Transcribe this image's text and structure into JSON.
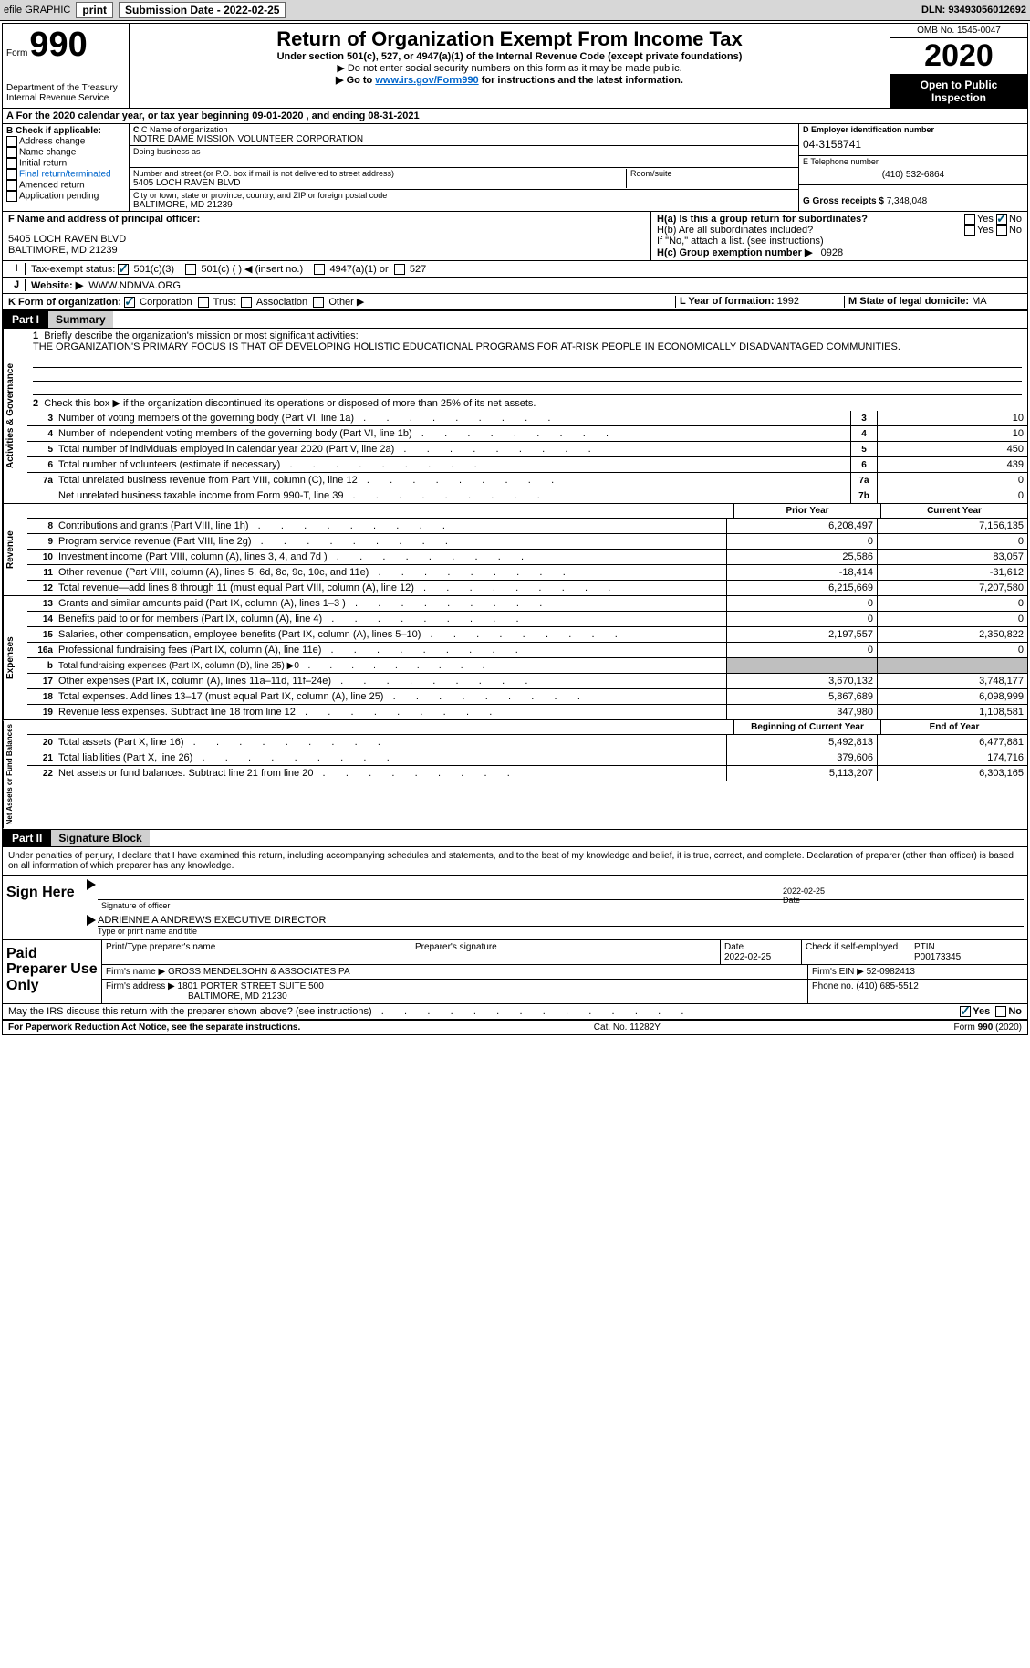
{
  "topbar": {
    "efile": "efile GRAPHIC",
    "print": "print",
    "subdate_label": "Submission Date - ",
    "subdate": "2022-02-25",
    "dln_label": "DLN: ",
    "dln": "93493056012692"
  },
  "header": {
    "form_word": "Form",
    "form_num": "990",
    "dept": "Department of the Treasury\nInternal Revenue Service",
    "title": "Return of Organization Exempt From Income Tax",
    "line1": "Under section 501(c), 527, or 4947(a)(1) of the Internal Revenue Code (except private foundations)",
    "line2": "▶ Do not enter social security numbers on this form as it may be made public.",
    "line3a": "▶ Go to ",
    "line3b": "www.irs.gov/Form990",
    "line3c": " for instructions and the latest information.",
    "omb": "OMB No. 1545-0047",
    "year": "2020",
    "open": "Open to Public Inspection"
  },
  "period": {
    "label": "A For the 2020 calendar year, or tax year beginning ",
    "start": "09-01-2020",
    "mid": "   , and ending ",
    "end": "08-31-2021"
  },
  "boxB": {
    "label": "B Check if applicable:",
    "items": [
      "Address change",
      "Name change",
      "Initial return",
      "Final return/terminated",
      "Amended return",
      "Application pending"
    ]
  },
  "boxC": {
    "name_lbl": "C Name of organization",
    "name": "NOTRE DAME MISSION VOLUNTEER CORPORATION",
    "dba_lbl": "Doing business as",
    "addr_lbl": "Number and street (or P.O. box if mail is not delivered to street address)",
    "room_lbl": "Room/suite",
    "addr": "5405 LOCH RAVEN BLVD",
    "city_lbl": "City or town, state or province, country, and ZIP or foreign postal code",
    "city": "BALTIMORE, MD  21239"
  },
  "boxD": {
    "ein_lbl": "D Employer identification number",
    "ein": "04-3158741",
    "tel_lbl": "E Telephone number",
    "tel": "(410) 532-6864",
    "gross_lbl": "G Gross receipts $ ",
    "gross": "7,348,048"
  },
  "boxF": {
    "lbl": "F Name and address of principal officer:",
    "addr1": "5405 LOCH RAVEN BLVD",
    "addr2": "BALTIMORE, MD  21239"
  },
  "boxH": {
    "a_lbl": "H(a)  Is this a group return for subordinates?",
    "b_lbl": "H(b)  Are all subordinates included?",
    "b_note": "If \"No,\" attach a list. (see instructions)",
    "c_lbl": "H(c)  Group exemption number ▶",
    "c_val": "0928",
    "yes": "Yes",
    "no": "No"
  },
  "boxI": {
    "lbl": "Tax-exempt status:",
    "o1": "501(c)(3)",
    "o2": "501(c) (  ) ◀ (insert no.)",
    "o3": "4947(a)(1) or",
    "o4": "527"
  },
  "boxJ": {
    "lbl": "Website: ▶",
    "val": "WWW.NDMVA.ORG"
  },
  "boxK": {
    "lbl": "K Form of organization:",
    "o1": "Corporation",
    "o2": "Trust",
    "o3": "Association",
    "o4": "Other ▶"
  },
  "boxL": {
    "l_lbl": "L Year of formation: ",
    "l_val": "1992",
    "m_lbl": "M State of legal domicile: ",
    "m_val": "MA"
  },
  "part1": {
    "hdr": "Part I",
    "title": "Summary",
    "l1_lbl": "Briefly describe the organization's mission or most significant activities:",
    "l1_val": "THE ORGANIZATION'S PRIMARY FOCUS IS THAT OF DEVELOPING HOLISTIC EDUCATIONAL PROGRAMS FOR AT-RISK PEOPLE IN ECONOMICALLY DISADVANTAGED COMMUNITIES.",
    "l2": "Check this box ▶        if the organization discontinued its operations or disposed of more than 25% of its net assets.",
    "rows_gov": [
      {
        "n": "3",
        "d": "Number of voting members of the governing body (Part VI, line 1a)",
        "b": "3",
        "v": "10"
      },
      {
        "n": "4",
        "d": "Number of independent voting members of the governing body (Part VI, line 1b)",
        "b": "4",
        "v": "10"
      },
      {
        "n": "5",
        "d": "Total number of individuals employed in calendar year 2020 (Part V, line 2a)",
        "b": "5",
        "v": "450"
      },
      {
        "n": "6",
        "d": "Total number of volunteers (estimate if necessary)",
        "b": "6",
        "v": "439"
      },
      {
        "n": "7a",
        "d": "Total unrelated business revenue from Part VIII, column (C), line 12",
        "b": "7a",
        "v": "0"
      },
      {
        "n": "",
        "d": "Net unrelated business taxable income from Form 990-T, line 39",
        "b": "7b",
        "v": "0"
      }
    ],
    "prior_hdr": "Prior Year",
    "curr_hdr": "Current Year",
    "rows_rev": [
      {
        "n": "8",
        "d": "Contributions and grants (Part VIII, line 1h)",
        "p": "6,208,497",
        "c": "7,156,135"
      },
      {
        "n": "9",
        "d": "Program service revenue (Part VIII, line 2g)",
        "p": "0",
        "c": "0"
      },
      {
        "n": "10",
        "d": "Investment income (Part VIII, column (A), lines 3, 4, and 7d )",
        "p": "25,586",
        "c": "83,057"
      },
      {
        "n": "11",
        "d": "Other revenue (Part VIII, column (A), lines 5, 6d, 8c, 9c, 10c, and 11e)",
        "p": "-18,414",
        "c": "-31,612"
      },
      {
        "n": "12",
        "d": "Total revenue—add lines 8 through 11 (must equal Part VIII, column (A), line 12)",
        "p": "6,215,669",
        "c": "7,207,580"
      }
    ],
    "rows_exp": [
      {
        "n": "13",
        "d": "Grants and similar amounts paid (Part IX, column (A), lines 1–3 )",
        "p": "0",
        "c": "0"
      },
      {
        "n": "14",
        "d": "Benefits paid to or for members (Part IX, column (A), line 4)",
        "p": "0",
        "c": "0"
      },
      {
        "n": "15",
        "d": "Salaries, other compensation, employee benefits (Part IX, column (A), lines 5–10)",
        "p": "2,197,557",
        "c": "2,350,822"
      },
      {
        "n": "16a",
        "d": "Professional fundraising fees (Part IX, column (A), line 11e)",
        "p": "0",
        "c": "0"
      },
      {
        "n": "b",
        "d": "Total fundraising expenses (Part IX, column (D), line 25) ▶0",
        "p": "",
        "c": "",
        "grey": true
      },
      {
        "n": "17",
        "d": "Other expenses (Part IX, column (A), lines 11a–11d, 11f–24e)",
        "p": "3,670,132",
        "c": "3,748,177"
      },
      {
        "n": "18",
        "d": "Total expenses. Add lines 13–17 (must equal Part IX, column (A), line 25)",
        "p": "5,867,689",
        "c": "6,098,999"
      },
      {
        "n": "19",
        "d": "Revenue less expenses. Subtract line 18 from line 12",
        "p": "347,980",
        "c": "1,108,581"
      }
    ],
    "beg_hdr": "Beginning of Current Year",
    "end_hdr": "End of Year",
    "rows_net": [
      {
        "n": "20",
        "d": "Total assets (Part X, line 16)",
        "p": "5,492,813",
        "c": "6,477,881"
      },
      {
        "n": "21",
        "d": "Total liabilities (Part X, line 26)",
        "p": "379,606",
        "c": "174,716"
      },
      {
        "n": "22",
        "d": "Net assets or fund balances. Subtract line 21 from line 20",
        "p": "5,113,207",
        "c": "6,303,165"
      }
    ],
    "vtab_gov": "Activities & Governance",
    "vtab_rev": "Revenue",
    "vtab_exp": "Expenses",
    "vtab_net": "Net Assets or Fund Balances"
  },
  "part2": {
    "hdr": "Part II",
    "title": "Signature Block",
    "decl": "Under penalties of perjury, I declare that I have examined this return, including accompanying schedules and statements, and to the best of my knowledge and belief, it is true, correct, and complete. Declaration of preparer (other than officer) is based on all information of which preparer has any knowledge.",
    "sign_here": "Sign Here",
    "sig_officer": "Signature of officer",
    "sig_date": "Date",
    "sig_date_val": "2022-02-25",
    "officer_name": "ADRIENNE A ANDREWS  EXECUTIVE DIRECTOR",
    "type_name": "Type or print name and title",
    "paid_prep": "Paid Preparer Use Only",
    "pt_name_lbl": "Print/Type preparer's name",
    "pt_sig_lbl": "Preparer's signature",
    "pt_date_lbl": "Date",
    "pt_date_val": "2022-02-25",
    "pt_check_lbl": "Check        if self-employed",
    "ptin_lbl": "PTIN",
    "ptin_val": "P00173345",
    "firm_name_lbl": "Firm's name    ▶ ",
    "firm_name": "GROSS MENDELSOHN & ASSOCIATES PA",
    "firm_ein_lbl": "Firm's EIN ▶ ",
    "firm_ein": "52-0982413",
    "firm_addr_lbl": "Firm's address ▶ ",
    "firm_addr1": "1801 PORTER STREET SUITE 500",
    "firm_addr2": "BALTIMORE, MD  21230",
    "phone_lbl": "Phone no. ",
    "phone": "(410) 685-5512",
    "discuss": "May the IRS discuss this return with the preparer shown above? (see instructions)"
  },
  "footer": {
    "pra": "For Paperwork Reduction Act Notice, see the separate instructions.",
    "cat": "Cat. No. 11282Y",
    "form": "Form 990 (2020)"
  }
}
